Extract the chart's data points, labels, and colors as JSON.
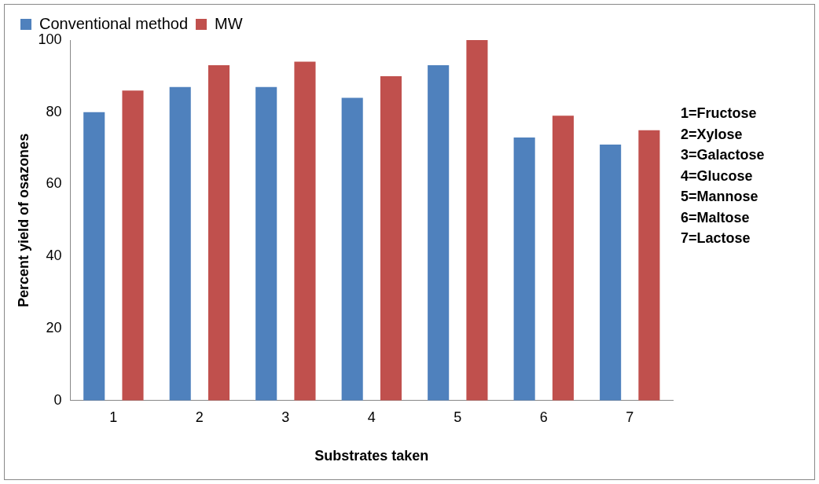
{
  "chart_data": {
    "type": "bar",
    "xlabel": "Substrates taken",
    "ylabel": "Percent yield of osazones",
    "categories": [
      "1",
      "2",
      "3",
      "4",
      "5",
      "6",
      "7"
    ],
    "series": [
      {
        "name": "Conventional method",
        "color": "#4f81bd",
        "values": [
          80,
          87,
          87,
          84,
          93,
          73,
          71
        ]
      },
      {
        "name": "MW",
        "color": "#c0504d",
        "values": [
          86,
          93,
          94,
          90,
          100,
          79,
          75
        ]
      }
    ],
    "ylim": [
      0,
      100
    ],
    "yticks": [
      0,
      20,
      40,
      60,
      80,
      100
    ],
    "grid": false,
    "legend": "top",
    "annotations": [
      "1=Fructose",
      "2=Xylose",
      "3=Galactose",
      "4=Glucose",
      "5=Mannose",
      "6=Maltose",
      "7=Lactose"
    ]
  }
}
